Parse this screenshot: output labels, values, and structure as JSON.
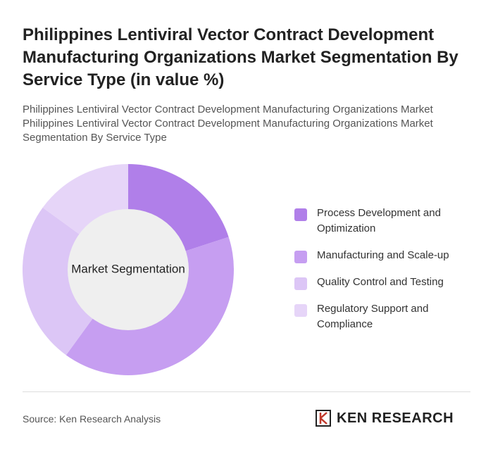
{
  "chart_data": {
    "type": "donut",
    "title": "Philippines Lentiviral Vector Contract Development Manufacturing Organizations Market Segmentation By Service Type (in value %)",
    "subtitle": "Philippines Lentiviral Vector Contract Development Manufacturing Organizations Market Philippines Lentiviral Vector Contract Development Manufacturing Organizations Market Segmentation By Service Type",
    "center_label": "Market Segmentation",
    "categories": [
      "Process Development and Optimization",
      "Manufacturing and Scale-up",
      "Quality Control and Testing",
      "Regulatory Support and Compliance"
    ],
    "values": [
      20,
      40,
      25,
      15
    ],
    "colors": [
      "#b07fe9",
      "#c69ef1",
      "#dcc6f6",
      "#e6d5f8"
    ],
    "source": "Source: Ken Research Analysis",
    "logo": "KEN RESEARCH"
  }
}
